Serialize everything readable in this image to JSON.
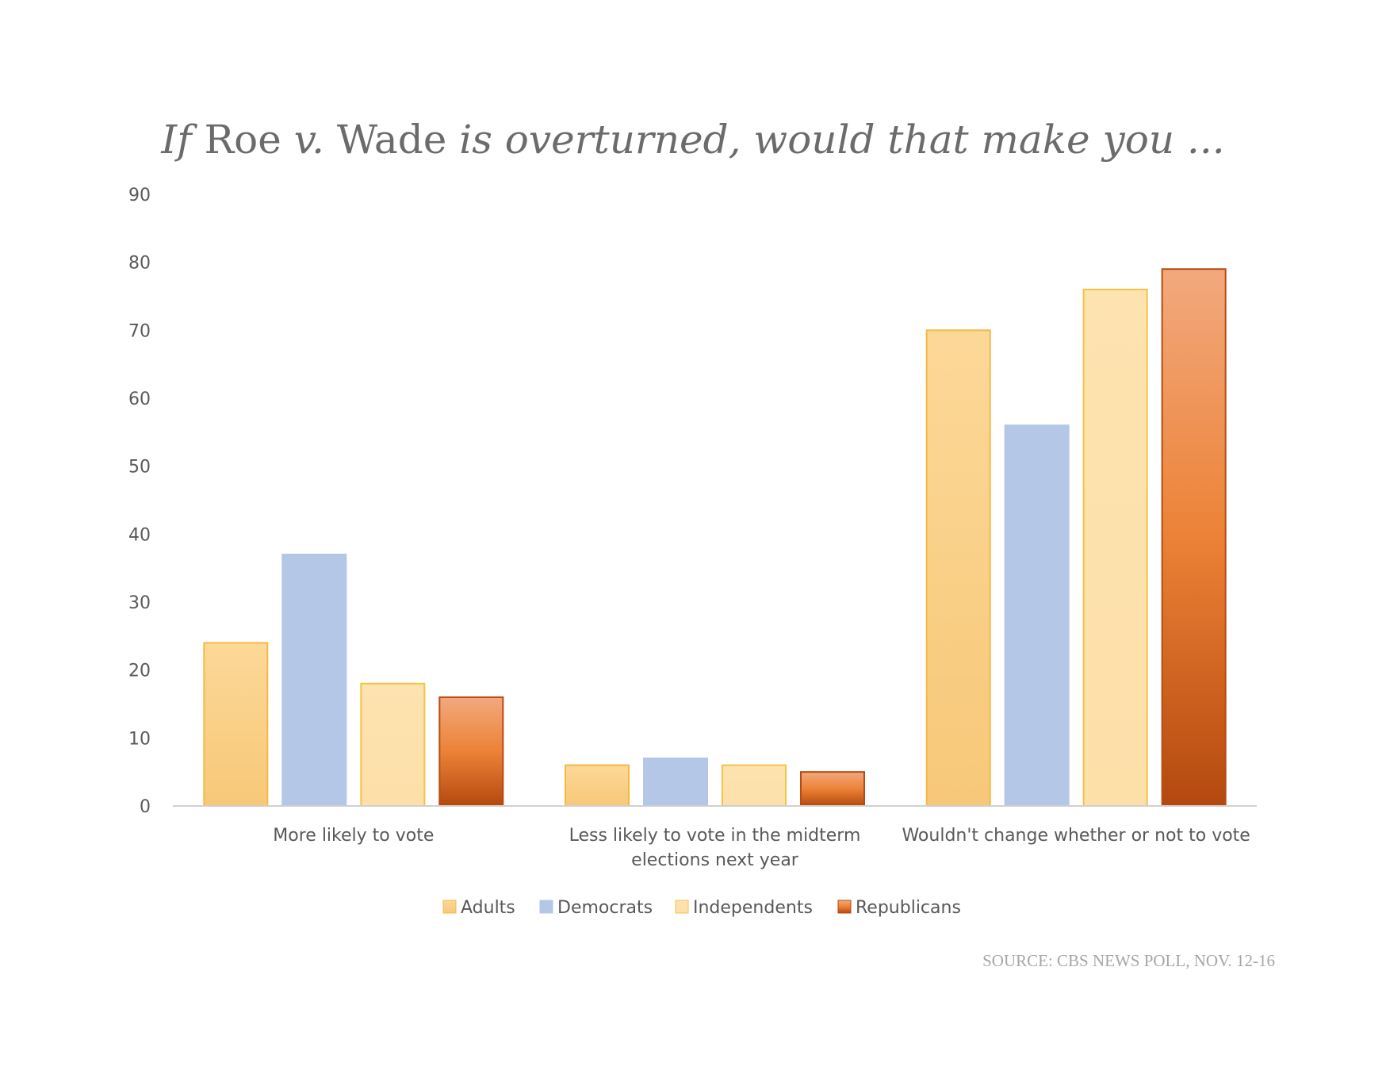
{
  "chart_data": {
    "type": "bar",
    "title": {
      "prefix_italic": "If ",
      "roman_1": "Roe ",
      "mid_italic": "v. ",
      "roman_2": "Wade ",
      "suffix_italic": "is overturned, would that make you ..."
    },
    "categories": [
      [
        "More likely to vote"
      ],
      [
        "Less likely to vote in the midterm",
        "elections next year"
      ],
      [
        "Wouldn't change whether or not to vote"
      ]
    ],
    "series": [
      {
        "name": "Adults",
        "values": [
          24,
          6,
          70
        ],
        "color_top": "#fcd898",
        "color_bottom": "#f7c878",
        "stroke": "#f5b942"
      },
      {
        "name": "Democrats",
        "values": [
          37,
          7,
          56
        ],
        "color_top": "#b4c7e7",
        "color_bottom": "#b4c7e7",
        "stroke": "#b4c7e7"
      },
      {
        "name": "Independents",
        "values": [
          18,
          6,
          76
        ],
        "color_top": "#fde3b0",
        "color_bottom": "#fddfa8",
        "stroke": "#f6c244"
      },
      {
        "name": "Republicans",
        "values": [
          16,
          5,
          79
        ],
        "color_top": "#f2a97e",
        "color_bottom": "#b4490f",
        "stroke": "#b84a12"
      }
    ],
    "ylim": [
      0,
      90
    ],
    "yticks": [
      "0",
      "10",
      "20",
      "30",
      "40",
      "50",
      "60",
      "70",
      "80",
      "90"
    ],
    "xlabel": "",
    "ylabel": "",
    "legend_position": "bottom",
    "grid": false,
    "source": "SOURCE: CBS NEWS POLL, NOV. 12-16"
  }
}
